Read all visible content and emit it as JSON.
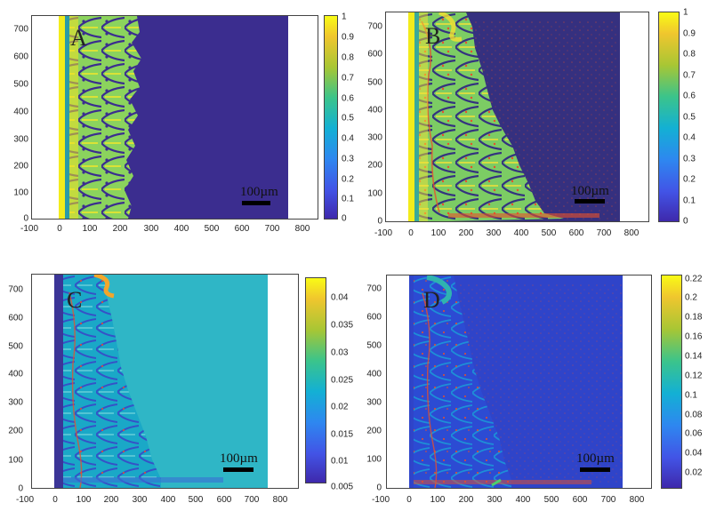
{
  "panels": [
    {
      "label": "A",
      "scale_bar_text": "100µm",
      "x_ticks": [
        "-100",
        "0",
        "100",
        "200",
        "300",
        "400",
        "500",
        "600",
        "700",
        "800"
      ],
      "y_ticks": [
        "700",
        "600",
        "500",
        "400",
        "300",
        "200",
        "100",
        "0"
      ],
      "colorbar_ticks": [
        "1",
        "0.9",
        "0.8",
        "0.7",
        "0.6",
        "0.5",
        "0.4",
        "0.3",
        "0.2",
        "0.1",
        "0"
      ]
    },
    {
      "label": "B",
      "scale_bar_text": "100µm",
      "x_ticks": [
        "-100",
        "0",
        "100",
        "200",
        "300",
        "400",
        "500",
        "600",
        "700",
        "800"
      ],
      "y_ticks": [
        "700",
        "600",
        "500",
        "400",
        "300",
        "200",
        "100",
        "0"
      ],
      "colorbar_ticks": [
        "1",
        "0.9",
        "0.8",
        "0.7",
        "0.6",
        "0.5",
        "0.4",
        "0.3",
        "0.2",
        "0.1",
        "0"
      ]
    },
    {
      "label": "C",
      "scale_bar_text": "100µm",
      "x_ticks": [
        "-100",
        "0",
        "100",
        "200",
        "300",
        "400",
        "500",
        "600",
        "700",
        "800"
      ],
      "y_ticks": [
        "700",
        "600",
        "500",
        "400",
        "300",
        "200",
        "100",
        "0"
      ],
      "colorbar_ticks": [
        "0.04",
        "0.035",
        "0.03",
        "0.025",
        "0.02",
        "0.015",
        "0.01",
        "0.005"
      ]
    },
    {
      "label": "D",
      "scale_bar_text": "100µm",
      "x_ticks": [
        "-100",
        "0",
        "100",
        "200",
        "300",
        "400",
        "500",
        "600",
        "700",
        "800"
      ],
      "y_ticks": [
        "700",
        "600",
        "500",
        "400",
        "300",
        "200",
        "100",
        "0"
      ],
      "colorbar_ticks": [
        "0.22",
        "0.2",
        "0.18",
        "0.16",
        "0.14",
        "0.12",
        "0.1",
        "0.08",
        "0.06",
        "0.04",
        "0.02"
      ]
    }
  ],
  "colors": {
    "parula_low": "#3b2d8f",
    "parula_mid": "#21b3a8",
    "parula_high": "#f9f21a",
    "dendrite_red": "#e8502a"
  }
}
